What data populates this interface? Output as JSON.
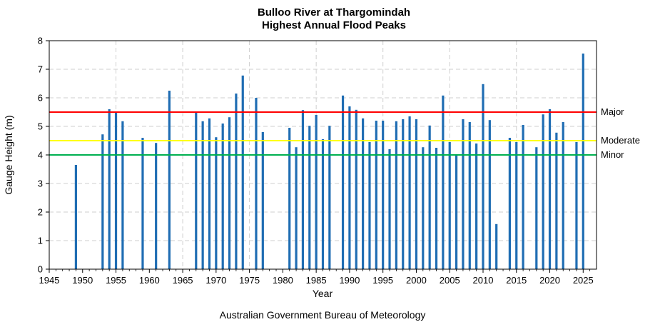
{
  "chart_data": {
    "type": "bar",
    "title": "Bulloo River at Thargomindah",
    "subtitle": "Highest Annual Flood Peaks",
    "xlabel": "Year",
    "ylabel": "Gauge Height (m)",
    "footer": "Australian Government Bureau of Meteorology",
    "xlim": [
      1945,
      2027
    ],
    "ylim": [
      0,
      8
    ],
    "x_ticks": [
      1945,
      1950,
      1955,
      1960,
      1965,
      1970,
      1975,
      1980,
      1985,
      1990,
      1995,
      2000,
      2005,
      2010,
      2015,
      2020,
      2025
    ],
    "y_ticks": [
      0,
      1,
      2,
      3,
      4,
      5,
      6,
      7,
      8
    ],
    "grid": true,
    "bar_color": "#1f6db3",
    "series": [
      {
        "x": [
          1949,
          1953,
          1954,
          1955,
          1956,
          1959,
          1961,
          1963,
          1967,
          1968,
          1969,
          1970,
          1971,
          1972,
          1973,
          1974,
          1976,
          1977,
          1981,
          1982,
          1983,
          1984,
          1985,
          1986,
          1987,
          1989,
          1990,
          1991,
          1992,
          1993,
          1994,
          1995,
          1996,
          1997,
          1998,
          1999,
          2000,
          2001,
          2002,
          2003,
          2004,
          2005,
          2006,
          2007,
          2008,
          2009,
          2010,
          2011,
          2012,
          2014,
          2015,
          2016,
          2018,
          2019,
          2020,
          2021,
          2022,
          2024,
          2025
        ],
        "values": [
          3.65,
          4.72,
          5.6,
          5.5,
          5.18,
          4.6,
          4.42,
          6.25,
          5.52,
          5.18,
          5.28,
          4.62,
          5.1,
          5.32,
          6.15,
          6.78,
          6.0,
          4.8,
          4.95,
          4.27,
          5.57,
          5.02,
          5.4,
          4.55,
          5.02,
          6.08,
          5.7,
          5.58,
          5.28,
          4.45,
          5.2,
          5.2,
          4.2,
          5.18,
          5.25,
          5.35,
          5.25,
          4.27,
          5.03,
          4.25,
          6.08,
          4.45,
          4.0,
          5.25,
          5.15,
          4.4,
          6.48,
          5.22,
          1.58,
          4.6,
          4.45,
          5.05,
          4.27,
          5.42,
          5.6,
          4.78,
          5.15,
          4.45,
          7.55
        ]
      }
    ],
    "thresholds": [
      {
        "label": "Major",
        "value": 5.5,
        "color": "#ff0000"
      },
      {
        "label": "Moderate",
        "value": 4.5,
        "color": "#ffff00"
      },
      {
        "label": "Minor",
        "value": 4.0,
        "color": "#00b050"
      }
    ]
  }
}
